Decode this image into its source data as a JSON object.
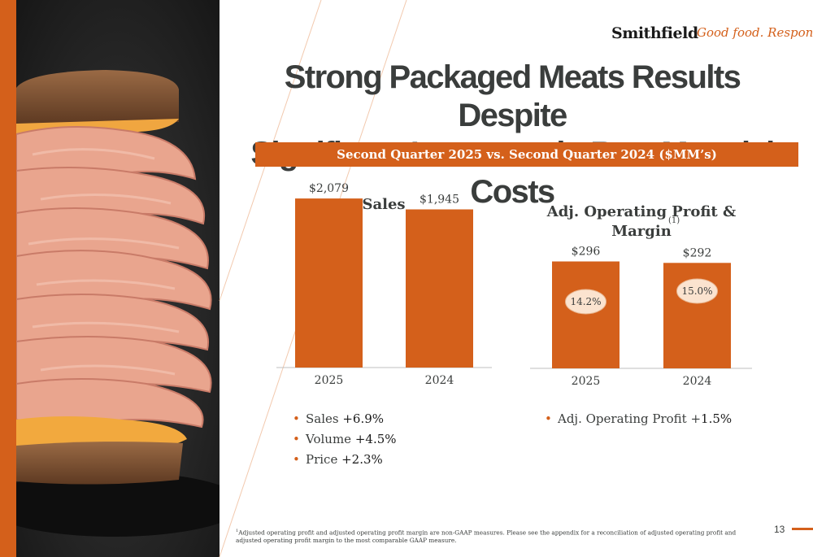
{
  "brand": {
    "name": "Smithfield",
    "tagline": "Good food. Responsibly.",
    "accent_color": "#d4601b",
    "text_color": "#3a3d3c"
  },
  "slide": {
    "title_line1": "Strong Packaged Meats Results Despite",
    "title_line2": "Significant Increases in Raw Material Costs",
    "banner": "Second Quarter 2025 vs. Second Quarter 2024 ($MM’s)",
    "page_number": "13",
    "footnote_marker": "1",
    "footnote": "Adjusted operating profit and adjusted operating profit margin are non-GAAP measures. Please see the appendix for a reconciliation of adjusted operating profit and adjusted operating profit margin to the most comparable GAAP measure."
  },
  "photo": {
    "icon": "deli-sandwich-photo"
  },
  "chart_data": [
    {
      "type": "bar",
      "title": "Sales",
      "categories": [
        "2025",
        "2024"
      ],
      "values": [
        2079,
        1945
      ],
      "value_labels": [
        "$2,079",
        "$1,945"
      ],
      "ylim": [
        0,
        2900
      ],
      "grid": false,
      "color": "#d4601b"
    },
    {
      "type": "bar",
      "title": "Adj. Operating Profit & Margin",
      "title_line1": "Adj. Operating Profit &",
      "title_line2": "Margin",
      "title_superscript": "(1)",
      "categories": [
        "2025",
        "2024"
      ],
      "values": [
        296,
        292
      ],
      "value_labels": [
        "$296",
        "$292"
      ],
      "margins": [
        14.2,
        15.0
      ],
      "margin_labels": [
        "14.2%",
        "15.0%"
      ],
      "ylim": [
        0,
        412
      ],
      "grid": false,
      "color": "#d4601b"
    }
  ],
  "bullets_sales": [
    {
      "prefix": "Sales ",
      "value": "+6.9%"
    },
    {
      "prefix": "Volume ",
      "value": "+4.5%"
    },
    {
      "prefix": "Price ",
      "value": "+2.3%"
    }
  ],
  "bullets_profit": [
    {
      "prefix": "Adj. Operating Profit +",
      "value": "1.5%"
    }
  ]
}
